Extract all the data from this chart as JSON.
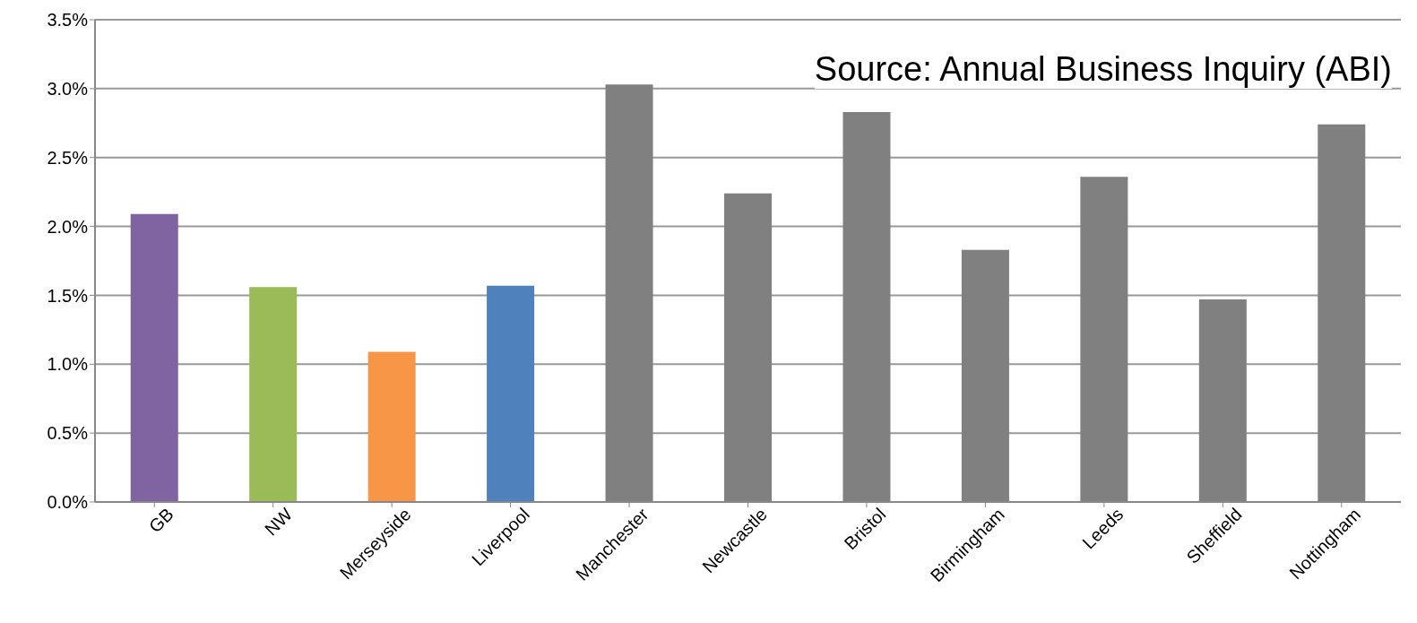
{
  "chart_data": {
    "type": "bar",
    "categories": [
      "GB",
      "NW",
      "Merseyside",
      "Liverpool",
      "Manchester",
      "Newcastle",
      "Bristol",
      "Birmingham",
      "Leeds",
      "Sheffield",
      "Nottingham"
    ],
    "values": [
      2.09,
      1.56,
      1.09,
      1.57,
      3.03,
      2.24,
      2.83,
      1.83,
      2.36,
      1.47,
      2.74
    ],
    "colors": [
      "#8064a2",
      "#9bbb59",
      "#f79646",
      "#4f81bd",
      "#808080",
      "#808080",
      "#808080",
      "#808080",
      "#808080",
      "#808080",
      "#808080"
    ],
    "ylim": [
      0,
      3.5
    ],
    "yticks": [
      {
        "value": 0,
        "label": "0.0%"
      },
      {
        "value": 0.5,
        "label": "0.5%"
      },
      {
        "value": 1,
        "label": "1.0%"
      },
      {
        "value": 1.5,
        "label": "1.5%"
      },
      {
        "value": 2,
        "label": "2.0%"
      },
      {
        "value": 2.5,
        "label": "2.5%"
      },
      {
        "value": 3,
        "label": "3.0%"
      },
      {
        "value": 3.5,
        "label": "3.5%"
      }
    ],
    "grid": "y",
    "annotations": [
      "Source: Annual Business Inquiry (ABI)"
    ]
  }
}
